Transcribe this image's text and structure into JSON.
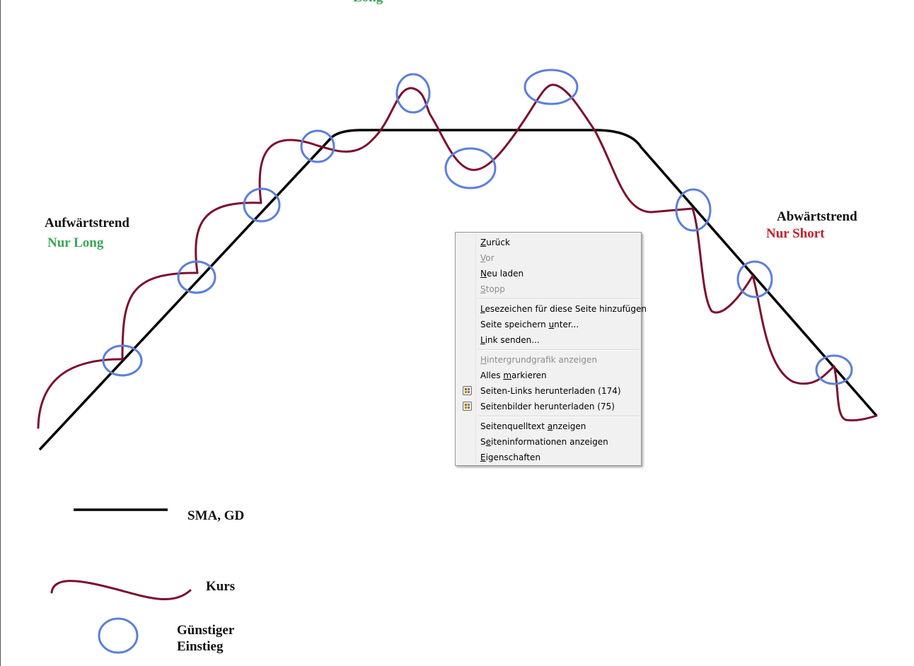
{
  "diagram": {
    "uptrend_title": "Aufwärtstrend",
    "uptrend_rule": "Nur Long",
    "downtrend_title": "Abwärtstrend",
    "downtrend_rule": "Nur Short",
    "cut_top_label": "Long",
    "colors": {
      "sma": "#000000",
      "price": "#7d0f2f",
      "entry": "#5b7fdc",
      "long": "#3aa655",
      "short": "#c41e2c"
    }
  },
  "legend": {
    "sma_label": "SMA, GD",
    "price_label": "Kurs",
    "entry_label_line1": "Günstiger",
    "entry_label_line2": "Einstieg"
  },
  "context_menu": {
    "items": [
      {
        "mnemonic": "Z",
        "rest": "urück",
        "disabled": false
      },
      {
        "mnemonic": "V",
        "rest": "or",
        "disabled": true
      },
      {
        "mnemonic": "N",
        "rest": "eu laden",
        "disabled": false
      },
      {
        "mnemonic": "S",
        "rest": "topp",
        "disabled": true
      },
      {
        "mnemonic": "L",
        "rest": "esezeichen für diese Seite hinzufügen",
        "disabled": false
      },
      {
        "pre": "Seite speichern ",
        "mnemonic": "u",
        "rest": "nter...",
        "disabled": false
      },
      {
        "mnemonic": "L",
        "rest": "ink senden...",
        "disabled": false
      },
      {
        "mnemonic": "H",
        "rest": "intergrundgrafik anzeigen",
        "disabled": true
      },
      {
        "pre": "Alles ",
        "mnemonic": "m",
        "rest": "arkieren",
        "disabled": false
      },
      {
        "text": "Seiten-Links herunterladen (174)",
        "icon": "download-links-icon",
        "disabled": false
      },
      {
        "text": "Seitenbilder herunterladen (75)",
        "icon": "download-images-icon",
        "disabled": false
      },
      {
        "pre": "Seitenquelltext ",
        "mnemonic": "a",
        "rest": "nzeigen",
        "disabled": false
      },
      {
        "pre": "S",
        "mnemonic": "e",
        "rest": "iteninformationen anzeigen",
        "disabled": false
      },
      {
        "mnemonic": "E",
        "rest": "igenschaften",
        "disabled": false
      }
    ]
  }
}
